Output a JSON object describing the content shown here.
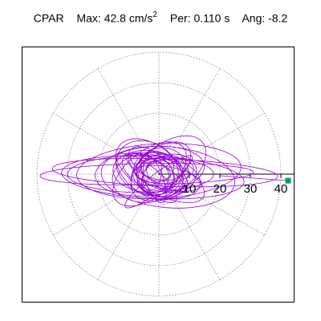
{
  "header": {
    "component_label": "CPAR",
    "max_label": "Max:",
    "max_value": "42.8",
    "max_unit": "cm/s",
    "max_unit_exponent": "2",
    "period_label": "Per:",
    "period_value": "0.110 s",
    "angle_label": "Ang:",
    "angle_value": "-8.2"
  },
  "chart_data": {
    "type": "polar-orbit",
    "radial_ticks": [
      10,
      20,
      30,
      40
    ],
    "radial_tick_labels": [
      "10",
      "20",
      "30",
      "40"
    ],
    "radial_max": 40,
    "angular_gridlines_deg": [
      0,
      30,
      60,
      90,
      120,
      150,
      180,
      210,
      240,
      270,
      300,
      330
    ],
    "grid": true,
    "peak": {
      "magnitude": 42.8,
      "angle_deg": -8.2
    },
    "trace_color": "#9400d3",
    "marker_color": "#009977"
  }
}
